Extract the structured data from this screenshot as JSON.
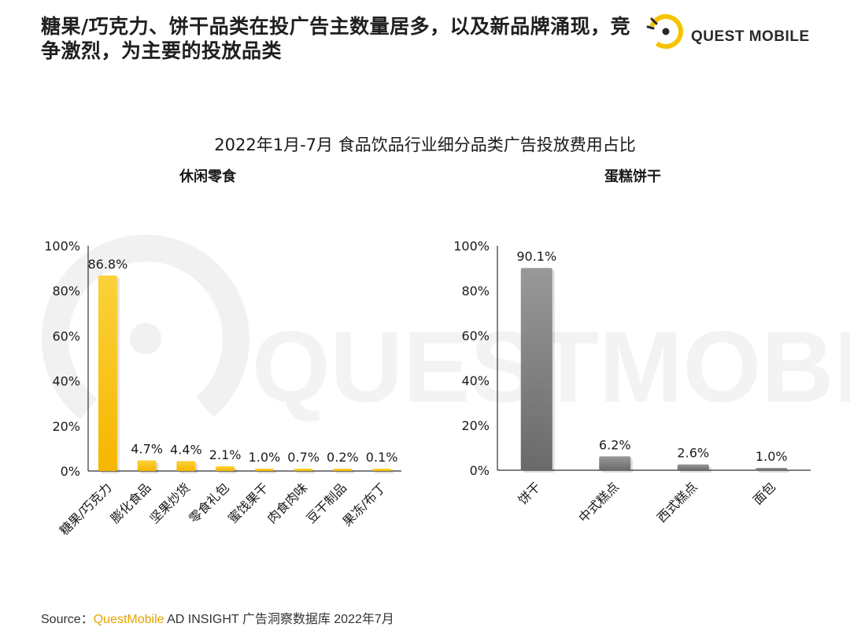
{
  "headline": "糖果/巧克力、饼干品类在投广告主数量居多，以及新品牌涌现，竞争激烈，为主要的投放品类",
  "logo": {
    "text": "QUEST MOBILE",
    "icon": "questmobile-logo-icon",
    "accent": "#f5c400"
  },
  "watermark": {
    "text": "QUESTMOBILE"
  },
  "chart_data": [
    {
      "type": "bar",
      "title": "2022年1月-7月 食品饮品行业细分品类广告投放费用占比",
      "subtitle": "休闲零食",
      "categories": [
        "糖果/巧克力",
        "膨化食品",
        "坚果炒货",
        "零食礼包",
        "蜜饯果干",
        "肉食肉味",
        "豆干制品",
        "果冻/布丁"
      ],
      "values": [
        86.8,
        4.7,
        4.4,
        2.1,
        1.0,
        0.7,
        0.2,
        0.1
      ],
      "data_labels": [
        "86.8%",
        "4.7%",
        "4.4%",
        "2.1%",
        "1.0%",
        "0.7%",
        "0.2%",
        "0.1%"
      ],
      "yticks": [
        "0%",
        "20%",
        "40%",
        "60%",
        "80%",
        "100%"
      ],
      "ylim": [
        0,
        100
      ],
      "color": "#f9c514",
      "grid": false
    },
    {
      "type": "bar",
      "subtitle": "蛋糕饼干",
      "categories": [
        "饼干",
        "中式糕点",
        "西式糕点",
        "面包"
      ],
      "values": [
        90.1,
        6.2,
        2.6,
        1.0
      ],
      "data_labels": [
        "90.1%",
        "6.2%",
        "2.6%",
        "1.0%"
      ],
      "yticks": [
        "0%",
        "20%",
        "40%",
        "60%",
        "80%",
        "100%"
      ],
      "ylim": [
        0,
        100
      ],
      "color": "#7a7a7a",
      "grid": false
    }
  ],
  "source": {
    "label": "Source：",
    "brand": "QuestMobile",
    "rest": " AD INSIGHT 广告洞察数据库 2022年7月"
  }
}
